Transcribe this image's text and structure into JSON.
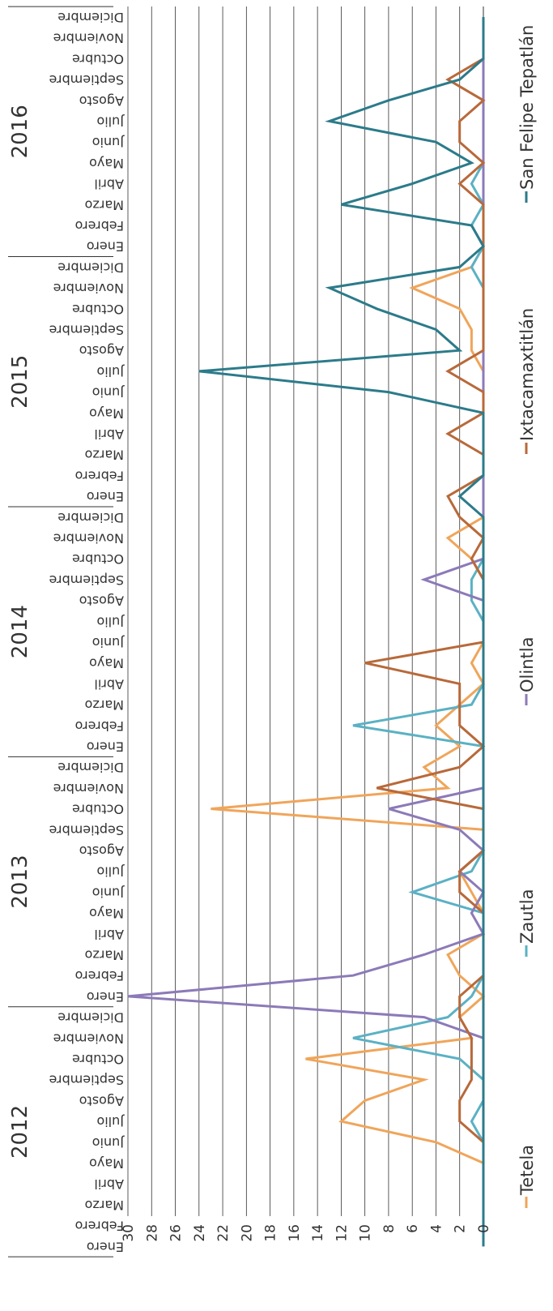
{
  "chart_data": {
    "type": "line",
    "orientation": "rotated-180",
    "ylim": [
      0,
      30
    ],
    "y_ticks": [
      0,
      2,
      4,
      6,
      8,
      10,
      12,
      14,
      16,
      18,
      20,
      22,
      24,
      26,
      28,
      30
    ],
    "grid": true,
    "legend_position": "bottom",
    "years": [
      "2012",
      "2013",
      "2014",
      "2015",
      "2016"
    ],
    "months": [
      "Enero",
      "Febrero",
      "Marzo",
      "Abril",
      "Mayo",
      "Junio",
      "Julio",
      "Agosto",
      "Septiembre",
      "Octubre",
      "Noviembre",
      "Diciembre"
    ],
    "series": [
      {
        "name": "Tetela",
        "color": "#f0a55a",
        "values": [
          0,
          0,
          0,
          0,
          0,
          4,
          12,
          10,
          5,
          15,
          1,
          2,
          0,
          2,
          3,
          0,
          0,
          1,
          2,
          0,
          0,
          23,
          3,
          5,
          2,
          4,
          2,
          0,
          1,
          0,
          0,
          0,
          0,
          1,
          3,
          0,
          0,
          0,
          0,
          0,
          0,
          0,
          0,
          1,
          1,
          2,
          6,
          1,
          0,
          0,
          0,
          0,
          0,
          0,
          0,
          0,
          0,
          0,
          0,
          0
        ]
      },
      {
        "name": "Zautla",
        "color": "#5bb1c4",
        "values": [
          0,
          0,
          0,
          0,
          0,
          0,
          1,
          0,
          0,
          2,
          11,
          3,
          1,
          0,
          0,
          0,
          0,
          6,
          1,
          0,
          0,
          0,
          0,
          0,
          0,
          11,
          1,
          0,
          0,
          0,
          0,
          1,
          1,
          0,
          0,
          0,
          0,
          0,
          0,
          0,
          0,
          0,
          0,
          0,
          0,
          0,
          0,
          1,
          0,
          1,
          0,
          1,
          0,
          0,
          0,
          0,
          0,
          0,
          0,
          0
        ]
      },
      {
        "name": "Olintla",
        "color": "#8c7ab8",
        "values": [
          0,
          0,
          0,
          0,
          0,
          0,
          0,
          0,
          0,
          0,
          0,
          5,
          30,
          11,
          5,
          0,
          1,
          0,
          2,
          0,
          2,
          8,
          0,
          0,
          0,
          0,
          0,
          0,
          0,
          0,
          0,
          0,
          5,
          0,
          0,
          0,
          0,
          0,
          0,
          0,
          0,
          0,
          0,
          0,
          0,
          0,
          0,
          0,
          0,
          0,
          0,
          0,
          0,
          0,
          0,
          0,
          0,
          0,
          0,
          0
        ]
      },
      {
        "name": "Ixtacamaxtitlán",
        "color": "#b8693a",
        "values": [
          0,
          0,
          0,
          0,
          0,
          0,
          2,
          2,
          1,
          1,
          1,
          2,
          2,
          0,
          0,
          0,
          0,
          2,
          2,
          0,
          0,
          0,
          9,
          2,
          0,
          2,
          2,
          2,
          10,
          0,
          0,
          0,
          0,
          1,
          0,
          2,
          3,
          0,
          0,
          3,
          0,
          0,
          3,
          0,
          0,
          0,
          0,
          0,
          0,
          0,
          0,
          2,
          0,
          2,
          2,
          0,
          3,
          0,
          0,
          0
        ]
      },
      {
        "name": "San Felipe Tepatlán",
        "color": "#2c7b8a",
        "values": [
          0,
          0,
          0,
          0,
          0,
          0,
          0,
          0,
          0,
          0,
          0,
          0,
          0,
          0,
          0,
          0,
          0,
          0,
          0,
          0,
          0,
          0,
          0,
          0,
          0,
          0,
          0,
          0,
          0,
          0,
          0,
          0,
          0,
          0,
          0,
          0,
          2,
          0,
          0,
          0,
          0,
          8,
          24,
          2,
          4,
          9,
          13,
          2,
          0,
          1,
          12,
          6,
          1,
          4,
          13,
          8,
          2,
          0,
          0,
          0
        ]
      }
    ]
  }
}
